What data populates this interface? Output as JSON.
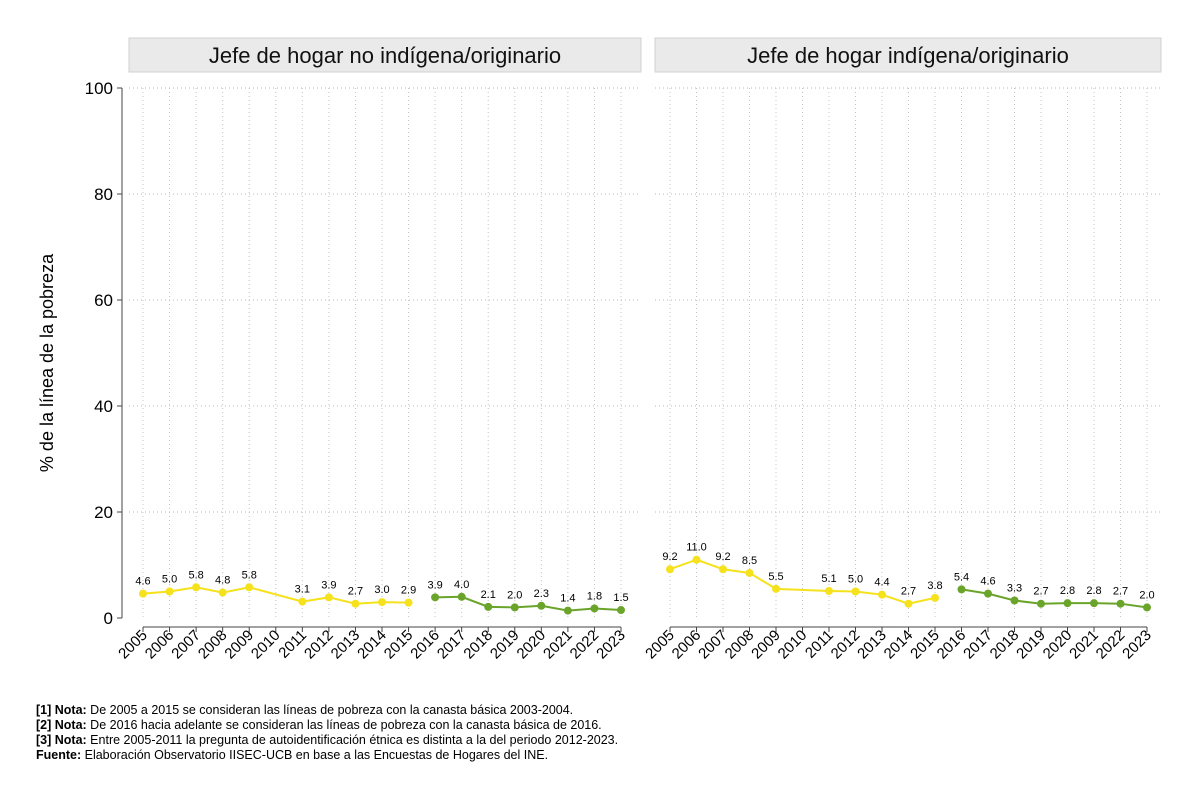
{
  "chart_data": {
    "type": "line",
    "ylabel": "% de la línea de la pobreza",
    "ylim": [
      0,
      100
    ],
    "yticks": [
      0,
      20,
      40,
      60,
      80,
      100
    ],
    "x": [
      "2005",
      "2006",
      "2007",
      "2008",
      "2009",
      "2010",
      "2011",
      "2012",
      "2013",
      "2014",
      "2015",
      "2016",
      "2017",
      "2018",
      "2019",
      "2020",
      "2021",
      "2022",
      "2023"
    ],
    "grid": true,
    "colors": {
      "yellow": "#f5e11c",
      "green": "#6aa42a"
    },
    "panels": [
      {
        "title": "Jefe de hogar no indígena/originario",
        "series": [
          {
            "color": "yellow",
            "points": [
              {
                "x": "2005",
                "y": 4.6,
                "label": "4.6"
              },
              {
                "x": "2006",
                "y": 5.0,
                "label": "5.0"
              },
              {
                "x": "2007",
                "y": 5.8,
                "label": "5.8"
              },
              {
                "x": "2008",
                "y": 4.8,
                "label": "4.8"
              },
              {
                "x": "2009",
                "y": 5.8,
                "label": "5.8"
              },
              {
                "x": "2011",
                "y": 3.1,
                "label": "3.1"
              },
              {
                "x": "2012",
                "y": 3.9,
                "label": "3.9"
              },
              {
                "x": "2013",
                "y": 2.7,
                "label": "2.7"
              },
              {
                "x": "2014",
                "y": 3.0,
                "label": "3.0"
              },
              {
                "x": "2015",
                "y": 2.9,
                "label": "2.9"
              }
            ]
          },
          {
            "color": "green",
            "points": [
              {
                "x": "2016",
                "y": 3.9,
                "label": "3.9"
              },
              {
                "x": "2017",
                "y": 4.0,
                "label": "4.0"
              },
              {
                "x": "2018",
                "y": 2.1,
                "label": "2.1"
              },
              {
                "x": "2019",
                "y": 2.0,
                "label": "2.0"
              },
              {
                "x": "2020",
                "y": 2.3,
                "label": "2.3"
              },
              {
                "x": "2021",
                "y": 1.4,
                "label": "1.4"
              },
              {
                "x": "2022",
                "y": 1.8,
                "label": "1.8"
              },
              {
                "x": "2023",
                "y": 1.5,
                "label": "1.5"
              }
            ]
          }
        ]
      },
      {
        "title": "Jefe de hogar indígena/originario",
        "series": [
          {
            "color": "yellow",
            "points": [
              {
                "x": "2005",
                "y": 9.2,
                "label": "9.2"
              },
              {
                "x": "2006",
                "y": 11.0,
                "label": "11.0"
              },
              {
                "x": "2007",
                "y": 9.2,
                "label": "9.2"
              },
              {
                "x": "2008",
                "y": 8.5,
                "label": "8.5"
              },
              {
                "x": "2009",
                "y": 5.5,
                "label": "5.5"
              },
              {
                "x": "2011",
                "y": 5.1,
                "label": "5.1"
              },
              {
                "x": "2012",
                "y": 5.0,
                "label": "5.0"
              },
              {
                "x": "2013",
                "y": 4.4,
                "label": "4.4"
              },
              {
                "x": "2014",
                "y": 2.7,
                "label": "2.7"
              },
              {
                "x": "2015",
                "y": 3.8,
                "label": "3.8"
              }
            ]
          },
          {
            "color": "green",
            "points": [
              {
                "x": "2016",
                "y": 5.4,
                "label": "5.4"
              },
              {
                "x": "2017",
                "y": 4.6,
                "label": "4.6"
              },
              {
                "x": "2018",
                "y": 3.3,
                "label": "3.3"
              },
              {
                "x": "2019",
                "y": 2.7,
                "label": "2.7"
              },
              {
                "x": "2020",
                "y": 2.8,
                "label": "2.8"
              },
              {
                "x": "2021",
                "y": 2.8,
                "label": "2.8"
              },
              {
                "x": "2022",
                "y": 2.7,
                "label": "2.7"
              },
              {
                "x": "2023",
                "y": 2.0,
                "label": "2.0"
              }
            ]
          }
        ]
      }
    ]
  },
  "notes": [
    {
      "bold": "[1] Nota:",
      "text": " De 2005 a 2015 se consideran las líneas de pobreza con la canasta básica 2003-2004."
    },
    {
      "bold": "[2] Nota:",
      "text": " De 2016 hacia adelante se consideran las líneas de pobreza con la canasta básica de 2016."
    },
    {
      "bold": "[3] Nota:",
      "text": " Entre 2005-2011 la pregunta de autoidentificación étnica es distinta a la del periodo 2012-2023."
    },
    {
      "bold": "Fuente:",
      "text": " Elaboración Observatorio IISEC-UCB en base a las Encuestas de Hogares del INE."
    }
  ]
}
